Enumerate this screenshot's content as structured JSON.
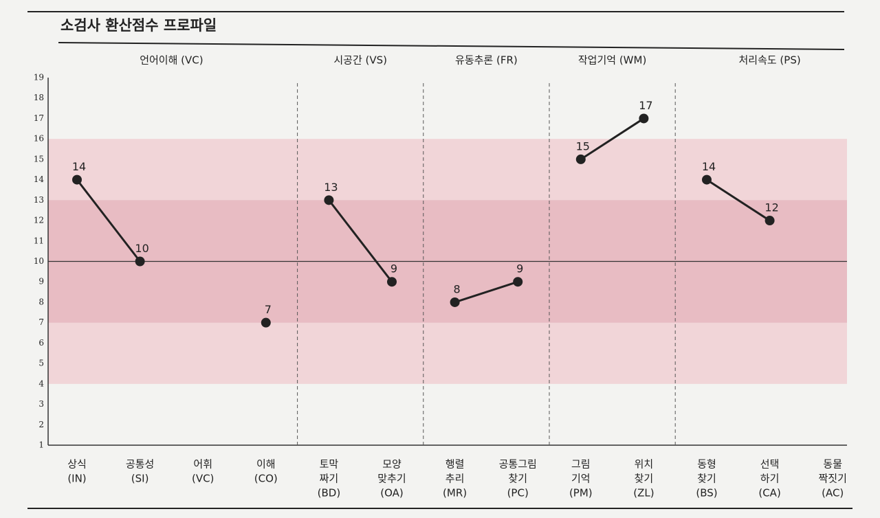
{
  "chart_data": {
    "type": "line",
    "title": "소검사 환산점수 프로파일",
    "groups": [
      {
        "name": "언어이해 (VC)",
        "categories": [
          [
            "상식",
            "(IN)"
          ],
          [
            "공통성",
            "(SI)"
          ],
          [
            "어휘",
            "(VC)"
          ],
          [
            "이해",
            "(CO)"
          ]
        ],
        "values": [
          14,
          10,
          null,
          7
        ]
      },
      {
        "name": "시공간 (VS)",
        "categories": [
          [
            "토막",
            "짜기",
            "(BD)"
          ],
          [
            "모양",
            "맞추기",
            "(OA)"
          ]
        ],
        "values": [
          13,
          9
        ]
      },
      {
        "name": "유동추론 (FR)",
        "categories": [
          [
            "행렬",
            "추리",
            "(MR)"
          ],
          [
            "공통그림",
            "찾기",
            "(PC)"
          ]
        ],
        "values": [
          8,
          9
        ]
      },
      {
        "name": "작업기억 (WM)",
        "categories": [
          [
            "그림",
            "기억",
            "(PM)"
          ],
          [
            "위치",
            "찾기",
            "(ZL)"
          ]
        ],
        "values": [
          15,
          17
        ]
      },
      {
        "name": "처리속도 (PS)",
        "categories": [
          [
            "동형",
            "찾기",
            "(BS)"
          ],
          [
            "선택",
            "하기",
            "(CA)"
          ],
          [
            "동물",
            "짝짓기",
            "(AC)"
          ]
        ],
        "values": [
          14,
          12,
          null
        ]
      }
    ],
    "color": "#222222",
    "ylim": [
      1,
      19
    ],
    "yticks": [
      1,
      2,
      3,
      4,
      5,
      6,
      7,
      8,
      9,
      10,
      11,
      12,
      13,
      14,
      15,
      16,
      17,
      18,
      19
    ],
    "bands": [
      {
        "range": [
          4,
          16
        ],
        "color": "#f1d5d8"
      },
      {
        "range": [
          7,
          13
        ],
        "color": "#e8bcc3"
      }
    ],
    "reference_line": 10
  }
}
